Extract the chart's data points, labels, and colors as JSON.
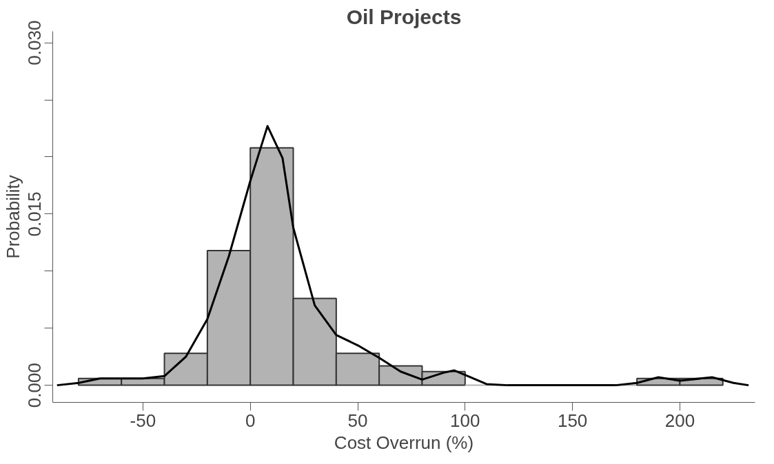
{
  "chart_data": {
    "type": "histogram",
    "title": "Oil Projects",
    "xlabel": "Cost Overrun (%)",
    "ylabel": "Probability",
    "bins": [
      -80,
      -60,
      -40,
      -20,
      0,
      20,
      40,
      60,
      80,
      100,
      120,
      140,
      160,
      180,
      200,
      220
    ],
    "values": [
      0.0006,
      0.0006,
      0.0028,
      0.0118,
      0.0208,
      0.0076,
      0.0028,
      0.0017,
      0.0012,
      0,
      0,
      0,
      0,
      0.0006,
      0.0006
    ],
    "color": "#b3b3b3",
    "series": [
      {
        "type": "line",
        "color": "#000000",
        "x": [
          -90,
          -80,
          -70,
          -60,
          -50,
          -40,
          -30,
          -20,
          -10,
          0,
          8,
          15,
          20,
          30,
          40,
          50,
          60,
          70,
          80,
          90,
          95,
          100,
          110,
          120,
          170,
          180,
          190,
          200,
          215,
          225,
          232
        ],
        "values": [
          0,
          0.0002,
          0.0006,
          0.0006,
          0.0006,
          0.0008,
          0.0025,
          0.0058,
          0.0113,
          0.0179,
          0.0227,
          0.0199,
          0.0138,
          0.007,
          0.0044,
          0.0035,
          0.0024,
          0.0012,
          0.0005,
          0.0011,
          0.0013,
          0.0009,
          0.0001,
          0,
          0,
          0.0002,
          0.0007,
          0.0004,
          0.0007,
          0.0002,
          0
        ]
      }
    ],
    "xlim": [
      -92,
      235
    ],
    "ylim": [
      -0.0015,
      0.031
    ],
    "xticks": [
      -50,
      0,
      50,
      100,
      150,
      200
    ],
    "yticks": [
      {
        "value": 0,
        "label": "0.000"
      },
      {
        "value": 0.005,
        "label": null
      },
      {
        "value": 0.01,
        "label": null
      },
      {
        "value": 0.015,
        "label": "0.015"
      },
      {
        "value": 0.02,
        "label": null
      },
      {
        "value": 0.025,
        "label": null
      },
      {
        "value": 0.03,
        "label": "0.030"
      }
    ],
    "grid": false
  }
}
